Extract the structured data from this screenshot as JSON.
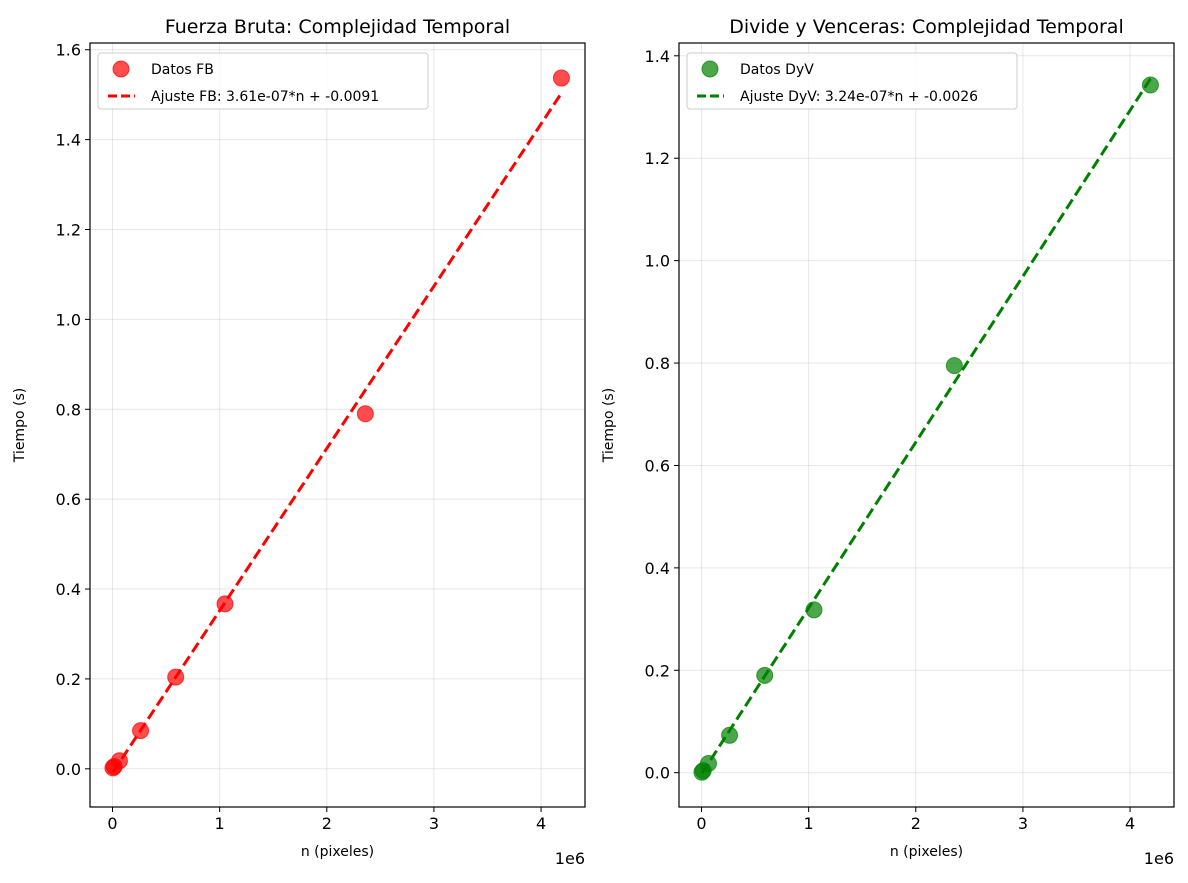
{
  "chart_data": [
    {
      "type": "scatter",
      "title": "Fuerza Bruta: Complejidad Temporal",
      "xlabel": "n (pixeles)",
      "ylabel": "Tiempo (s)",
      "x_offset_label": "1e6",
      "xlim": [
        -0.21,
        4.41
      ],
      "ylim": [
        -0.085,
        1.615
      ],
      "xticks": [
        0,
        1,
        2,
        3,
        4
      ],
      "xtick_labels": [
        "0",
        "1",
        "2",
        "3",
        "4"
      ],
      "yticks": [
        0.0,
        0.2,
        0.4,
        0.6,
        0.8,
        1.0,
        1.2,
        1.4,
        1.6
      ],
      "ytick_labels": [
        "0.0",
        "0.2",
        "0.4",
        "0.6",
        "0.8",
        "1.0",
        "1.2",
        "1.4",
        "1.6"
      ],
      "grid": true,
      "legend_position": "top-left",
      "color": "#ff0000",
      "series": [
        {
          "name": "Datos FB",
          "kind": "scatter",
          "x": [
            0.004,
            0.016,
            0.065,
            0.262,
            0.59,
            1.05,
            2.36,
            4.19
          ],
          "y": [
            0.002,
            0.005,
            0.018,
            0.085,
            0.204,
            0.367,
            0.79,
            1.537
          ]
        },
        {
          "name": "Ajuste FB: 3.61e-07*n + -0.0091",
          "kind": "line",
          "x": [
            0.004,
            4.19
          ],
          "y": [
            -0.0077,
            1.5035
          ]
        }
      ]
    },
    {
      "type": "scatter",
      "title": "Divide y Venceras: Complejidad Temporal",
      "xlabel": "n (pixeles)",
      "ylabel": "Tiempo (s)",
      "x_offset_label": "1e6",
      "xlim": [
        -0.21,
        4.41
      ],
      "ylim": [
        -0.067,
        1.425
      ],
      "xticks": [
        0,
        1,
        2,
        3,
        4
      ],
      "xtick_labels": [
        "0",
        "1",
        "2",
        "3",
        "4"
      ],
      "yticks": [
        0.0,
        0.2,
        0.4,
        0.6,
        0.8,
        1.0,
        1.2,
        1.4
      ],
      "ytick_labels": [
        "0.0",
        "0.2",
        "0.4",
        "0.6",
        "0.8",
        "1.0",
        "1.2",
        "1.4"
      ],
      "grid": true,
      "legend_position": "top-left",
      "color": "#008000",
      "series": [
        {
          "name": "Datos DyV",
          "kind": "scatter",
          "x": [
            0.004,
            0.016,
            0.065,
            0.262,
            0.59,
            1.05,
            2.36,
            4.19
          ],
          "y": [
            0.001,
            0.004,
            0.018,
            0.073,
            0.19,
            0.318,
            0.795,
            1.343
          ]
        },
        {
          "name": "Ajuste DyV: 3.24e-07*n + -0.0026",
          "kind": "line",
          "x": [
            0.004,
            4.19
          ],
          "y": [
            -0.0013,
            1.355
          ]
        }
      ]
    }
  ]
}
